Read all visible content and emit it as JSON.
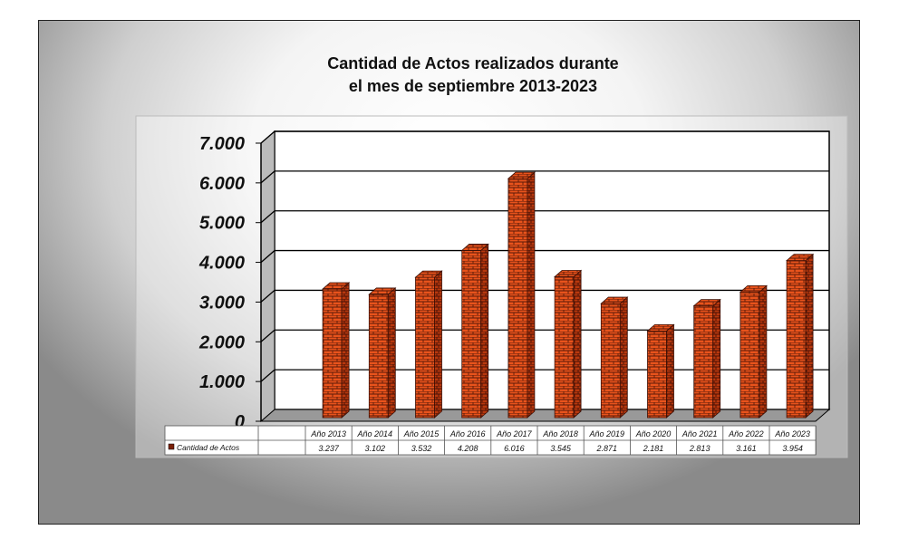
{
  "chart_data": {
    "type": "bar",
    "title": "Cantidad de Actos realizados durante",
    "subtitle": "el mes de septiembre 2013-2023",
    "categories": [
      "Año 2013",
      "Año 2014",
      "Año 2015",
      "Año 2016",
      "Año 2017",
      "Año 2018",
      "Año 2019",
      "Año 2020",
      "Año 2021",
      "Año 2022",
      "Año 2023"
    ],
    "series": [
      {
        "name": "Cantidad de Actos",
        "values": [
          3237,
          3102,
          3532,
          4208,
          6016,
          3545,
          2871,
          2181,
          2813,
          3161,
          3954
        ]
      }
    ],
    "value_labels": [
      "3.237",
      "3.102",
      "3.532",
      "4.208",
      "6.016",
      "3.545",
      "2.871",
      "2.181",
      "2.813",
      "3.161",
      "3.954"
    ],
    "yticks": [
      "0",
      "1.000",
      "2.000",
      "3.000",
      "4.000",
      "5.000",
      "6.000",
      "7.000"
    ],
    "ylim": [
      0,
      7000
    ],
    "xlabel": "",
    "ylabel": "",
    "grid": true,
    "legend": "data-table",
    "colors": {
      "brick": "#e8531c",
      "mortar": "#5a1a08"
    }
  }
}
